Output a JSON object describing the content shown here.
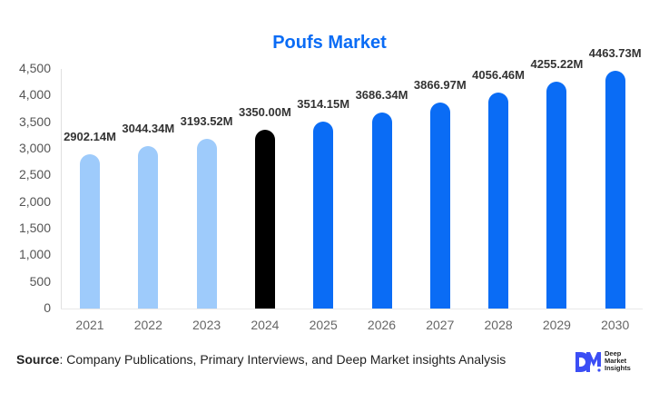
{
  "title": "Poufs Market",
  "chart_data": {
    "type": "bar",
    "title": "Poufs Market",
    "xlabel": "",
    "ylabel": "",
    "ylim": [
      0,
      4500
    ],
    "yticks": [
      "0",
      "500",
      "1,000",
      "1,500",
      "2,000",
      "2,500",
      "3,000",
      "3,500",
      "4,000",
      "4,500"
    ],
    "grid": false,
    "categories": [
      "2021",
      "2022",
      "2023",
      "2024",
      "2025",
      "2026",
      "2027",
      "2028",
      "2029",
      "2030"
    ],
    "values": [
      2902.14,
      3044.34,
      3193.52,
      3350.0,
      3514.15,
      3686.34,
      3866.97,
      4056.46,
      4255.22,
      4463.73
    ],
    "labels": [
      "2902.14M",
      "3044.34M",
      "3193.52M",
      "3350.00M",
      "3514.15M",
      "3686.34M",
      "3866.97M",
      "4056.46M",
      "4255.22M",
      "4463.73M"
    ],
    "colors": [
      "#9ecbfb",
      "#9ecbfb",
      "#9ecbfb",
      "#000000",
      "#0a6cf5",
      "#0a6cf5",
      "#0a6cf5",
      "#0a6cf5",
      "#0a6cf5",
      "#0a6cf5"
    ]
  },
  "source": {
    "label": "Source",
    "text": ": Company Publications, Primary Interviews, and Deep Market insights Analysis"
  },
  "logo": {
    "mark": "DM",
    "line1": "Deep",
    "line2": "Market",
    "line3": "Insights"
  }
}
